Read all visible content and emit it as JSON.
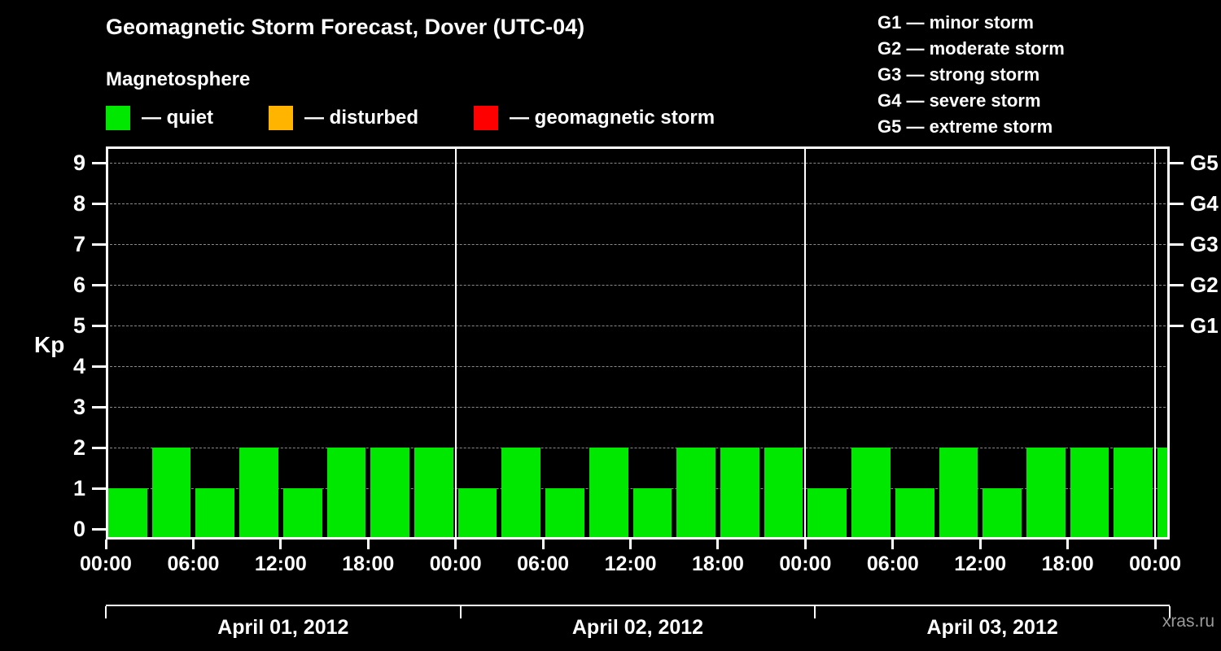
{
  "header": {
    "title": "Geomagnetic Storm Forecast, Dover (UTC-04)",
    "subtitle": "Magnetosphere"
  },
  "legend": {
    "items": [
      {
        "name": "quiet-swatch-icon",
        "label": "— quiet",
        "color": "#00e800"
      },
      {
        "name": "disturbed-swatch-icon",
        "label": "— disturbed",
        "color": "#ffb400"
      },
      {
        "name": "storm-swatch-icon",
        "label": "— geomagnetic storm",
        "color": "#ff0000"
      }
    ]
  },
  "g_scale_legend": {
    "items": [
      "G1 — minor storm",
      "G2 — moderate storm",
      "G3 — strong storm",
      "G4 — severe storm",
      "G5 — extreme storm"
    ]
  },
  "watermark": "xras.ru",
  "chart_data": {
    "type": "bar",
    "title": "Geomagnetic Storm Forecast, Dover (UTC-04)",
    "ylabel": "Kp",
    "ylim": [
      -0.25,
      9.4
    ],
    "y_ticks": [
      0,
      1,
      2,
      3,
      4,
      5,
      6,
      7,
      8,
      9
    ],
    "grid_kp_levels": [
      1,
      2,
      3,
      4,
      5,
      6,
      7,
      8,
      9
    ],
    "grid": "dashed horizontal lines at integer Kp levels",
    "bar_color": "#00e800",
    "hours_per_bar": 3,
    "total_hours": 73,
    "day_divider_hours": [
      24,
      48,
      72
    ],
    "x_tick_interval_hours": 6,
    "x_tick_labels": [
      "00:00",
      "06:00",
      "12:00",
      "18:00",
      "00:00",
      "06:00",
      "12:00",
      "18:00",
      "00:00",
      "06:00",
      "12:00",
      "18:00",
      "00:00"
    ],
    "right_axis": [
      {
        "label": "G1",
        "kp": 5
      },
      {
        "label": "G2",
        "kp": 6
      },
      {
        "label": "G3",
        "kp": 7
      },
      {
        "label": "G4",
        "kp": 8
      },
      {
        "label": "G5",
        "kp": 9
      }
    ],
    "days": [
      {
        "label": "April 01, 2012",
        "kp_values": [
          1,
          2,
          1,
          2,
          1,
          2,
          2,
          2
        ]
      },
      {
        "label": "April 02, 2012",
        "kp_values": [
          1,
          2,
          1,
          2,
          1,
          2,
          2,
          2
        ]
      },
      {
        "label": "April 03, 2012",
        "kp_values": [
          1,
          2,
          1,
          2,
          1,
          2,
          2,
          2
        ]
      }
    ],
    "trailing_partial_bar_kp": 2
  }
}
